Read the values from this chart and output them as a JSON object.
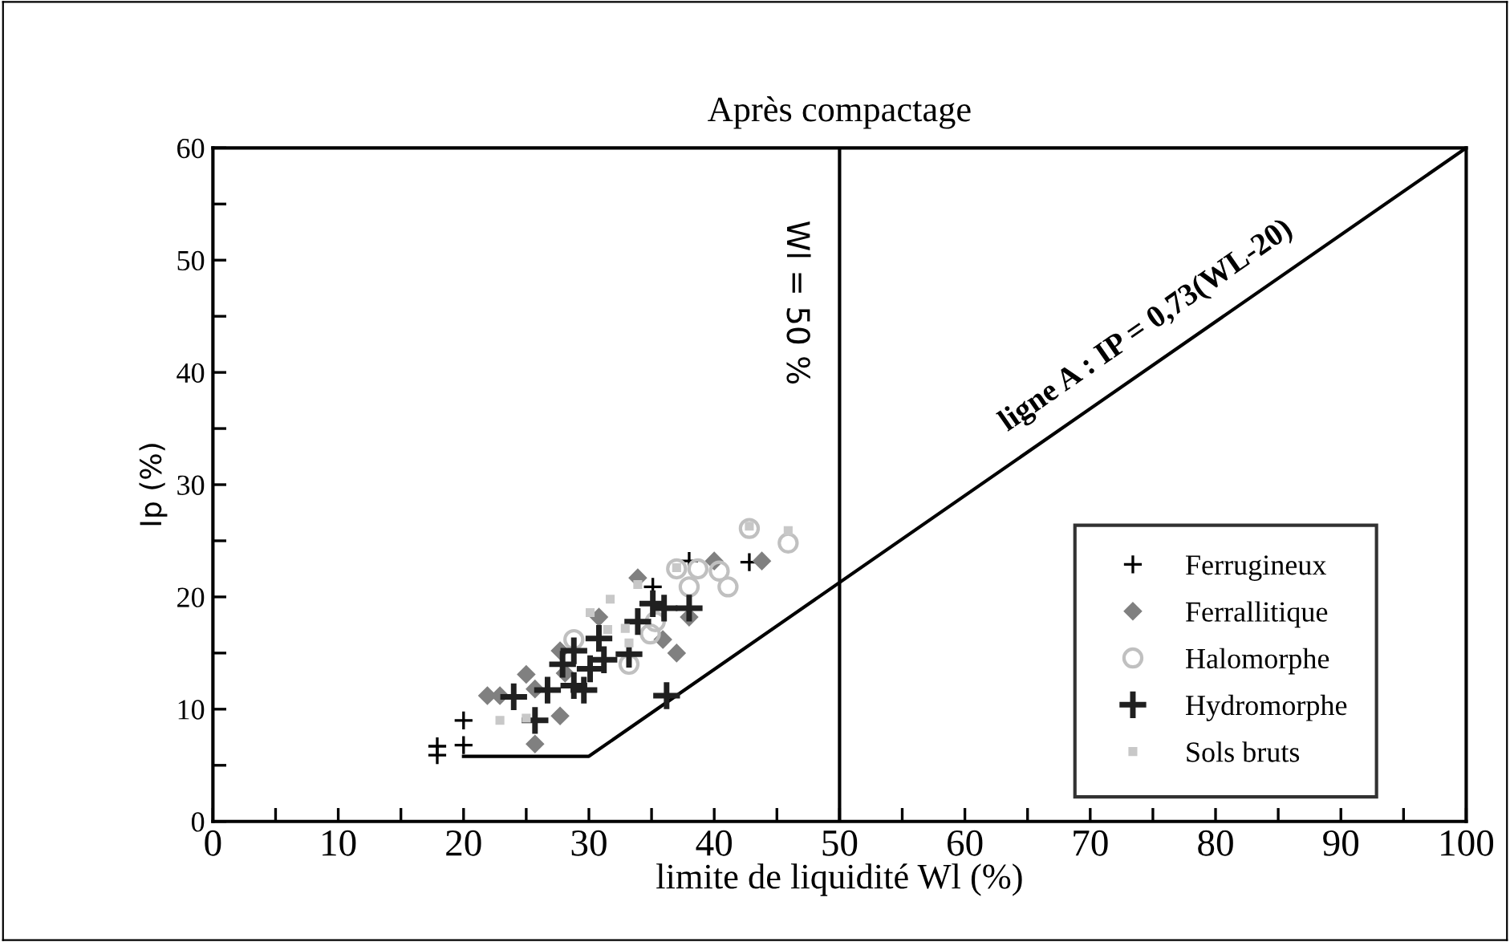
{
  "chart_data": {
    "type": "scatter",
    "title": "Après compactage",
    "xlabel": "limite de liquidité Wl (%)",
    "ylabel": "Ip (%)",
    "xlim": [
      0,
      100
    ],
    "ylim": [
      0,
      60
    ],
    "xticks": [
      0,
      {
        "value": 5,
        "label": null
      },
      10,
      {
        "value": 15,
        "label": null
      },
      20,
      {
        "value": 25,
        "label": null
      },
      30,
      {
        "value": 35,
        "label": null
      },
      40,
      {
        "value": 45,
        "label": null
      },
      50,
      {
        "value": 55,
        "label": null
      },
      60,
      {
        "value": 65,
        "label": null
      },
      70,
      {
        "value": 75,
        "label": null
      },
      80,
      {
        "value": 85,
        "label": null
      },
      90,
      {
        "value": 95,
        "label": null
      },
      100
    ],
    "yticks": [
      0,
      {
        "value": 5,
        "label": null
      },
      10,
      {
        "value": 15,
        "label": null
      },
      20,
      {
        "value": 25,
        "label": null
      },
      30,
      {
        "value": 35,
        "label": null
      },
      40,
      {
        "value": 45,
        "label": null
      },
      50,
      {
        "value": 55,
        "label": null
      },
      60
    ],
    "grid": false,
    "legend": "bottom right",
    "series": [
      {
        "name": "Ferrugineux",
        "color": "#000000",
        "marker": "cross",
        "x": [
          17.9,
          17.9,
          20,
          20,
          35.1,
          42.8,
          38
        ],
        "values": [
          6.7,
          5.9,
          9,
          6.8,
          20.9,
          23.1,
          23.2
        ]
      },
      {
        "name": "Ferrallitique",
        "color": "#808080",
        "marker": "diamond",
        "x": [
          21.9,
          22.9,
          25,
          25.7,
          25.7,
          27.7,
          27.7,
          30.8,
          37,
          35.9,
          38,
          40,
          43.8,
          28.1,
          33.9
        ],
        "values": [
          11.2,
          11.2,
          13.1,
          11.8,
          6.9,
          9.4,
          15.2,
          18.2,
          15,
          16.2,
          18.2,
          23.2,
          23.2,
          13.2,
          21.7
        ]
      },
      {
        "name": "Halomorphe",
        "color": "#c0c0c0",
        "marker": "circle",
        "x": [
          28.8,
          34.9,
          35.3,
          38,
          41.1,
          42.8,
          45.9,
          37,
          38.7,
          40.4,
          33.2
        ],
        "values": [
          16.2,
          16.7,
          17.8,
          20.9,
          20.9,
          26.1,
          24.8,
          22.5,
          22.5,
          22.3,
          14
        ]
      },
      {
        "name": "Hydromorphe",
        "color": "#202020",
        "marker": "cross",
        "x": [
          24,
          25.7,
          26.7,
          27.9,
          28.8,
          29.6,
          28.8,
          30.8,
          31.2,
          33.2,
          33.9,
          35.1,
          36,
          38,
          36.2,
          30.1
        ],
        "values": [
          11.1,
          9,
          11.7,
          14,
          12.1,
          11.7,
          15.2,
          16.3,
          14.4,
          14.9,
          17.8,
          19.4,
          19,
          19,
          11.2,
          13.6
        ]
      },
      {
        "name": "Sols bruts",
        "color": "#c8c8c8",
        "marker": "square",
        "x": [
          22.9,
          25,
          30.1,
          31.7,
          33.9,
          31.5,
          33.2,
          45.9,
          42.8,
          37,
          32.9
        ],
        "values": [
          9,
          9.2,
          18.6,
          19.8,
          21.1,
          17.1,
          15.9,
          25.9,
          26.3,
          22.6,
          17.2
        ]
      },
      {
        "type": "line",
        "color": "#000000",
        "marker": "none",
        "x": [
          20,
          30,
          100
        ],
        "values": [
          5.8,
          5.8,
          60
        ]
      }
    ],
    "ref_lines": [
      {
        "axis": "x",
        "value": 50,
        "label": "Wl = 50 %",
        "color": "#000000"
      }
    ],
    "annotations": [
      "ligne A : IP = 0,73(WL-20)"
    ]
  }
}
